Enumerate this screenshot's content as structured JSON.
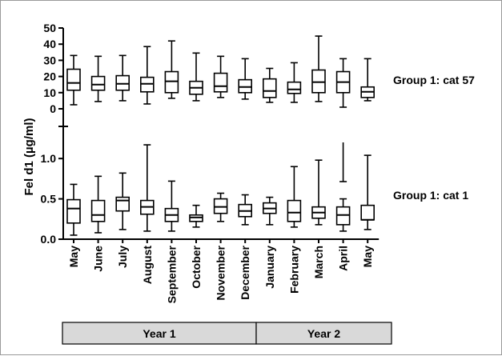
{
  "chart_data": [
    {
      "type": "box",
      "title": "",
      "panel_label": "Group 1: cat 57",
      "ylabel": "Fel d1 (µg/ml)",
      "ylim": [
        0,
        50
      ],
      "yticks": [
        "0",
        "10",
        "20",
        "30",
        "40",
        "50"
      ],
      "y_axis_break_at_bottom": true,
      "grid": false,
      "categories": [
        "May",
        "June",
        "July",
        "August",
        "September",
        "October",
        "November",
        "December",
        "January",
        "February",
        "March",
        "April",
        "May"
      ],
      "boxes": [
        {
          "min": 2.5,
          "q1": 11.5,
          "median": 16,
          "q3": 24.5,
          "max": 33
        },
        {
          "min": 4.5,
          "q1": 11.5,
          "median": 15,
          "q3": 20,
          "max": 32.5
        },
        {
          "min": 5,
          "q1": 11.5,
          "median": 15.5,
          "q3": 20.5,
          "max": 33
        },
        {
          "min": 3,
          "q1": 10.5,
          "median": 15.5,
          "q3": 19.5,
          "max": 38.5
        },
        {
          "min": 6.5,
          "q1": 10,
          "median": 17,
          "q3": 23,
          "max": 42
        },
        {
          "min": 5,
          "q1": 9,
          "median": 13,
          "q3": 17,
          "max": 34.5
        },
        {
          "min": 7,
          "q1": 10.5,
          "median": 14,
          "q3": 22,
          "max": 32.5
        },
        {
          "min": 6,
          "q1": 10,
          "median": 13.5,
          "q3": 18,
          "max": 31
        },
        {
          "min": 4,
          "q1": 7,
          "median": 11,
          "q3": 18.5,
          "max": 25
        },
        {
          "min": 4,
          "q1": 9.5,
          "median": 12,
          "q3": 16.5,
          "max": 28.5
        },
        {
          "min": 4.5,
          "q1": 10,
          "median": 16.5,
          "q3": 24,
          "max": 45
        },
        {
          "min": 1,
          "q1": 10,
          "median": 16.5,
          "q3": 23,
          "max": 31
        },
        {
          "min": 5,
          "q1": 7,
          "median": 10.5,
          "q3": 13.5,
          "max": 31
        }
      ]
    },
    {
      "type": "box",
      "title": "",
      "panel_label": "Group 1: cat 1",
      "ylim": [
        0,
        1.2
      ],
      "yticks": [
        "0.0",
        "0.5",
        "1.0"
      ],
      "y_axis_break_at_top": true,
      "grid": false,
      "categories": [
        "May",
        "June",
        "July",
        "August",
        "September",
        "October",
        "November",
        "December",
        "January",
        "February",
        "March",
        "April",
        "May"
      ],
      "boxes": [
        {
          "min": 0.05,
          "q1": 0.2,
          "median": 0.38,
          "q3": 0.49,
          "max": 0.68
        },
        {
          "min": 0.08,
          "q1": 0.22,
          "median": 0.3,
          "q3": 0.48,
          "max": 0.78
        },
        {
          "min": 0.12,
          "q1": 0.35,
          "median": 0.48,
          "q3": 0.52,
          "max": 0.82
        },
        {
          "min": 0.1,
          "q1": 0.31,
          "median": 0.4,
          "q3": 0.48,
          "max": 1.17
        },
        {
          "min": 0.1,
          "q1": 0.22,
          "median": 0.3,
          "q3": 0.38,
          "max": 0.72
        },
        {
          "min": 0.15,
          "q1": 0.22,
          "median": 0.27,
          "q3": 0.3,
          "max": 0.42
        },
        {
          "min": 0.22,
          "q1": 0.32,
          "median": 0.4,
          "q3": 0.5,
          "max": 0.57
        },
        {
          "min": 0.18,
          "q1": 0.28,
          "median": 0.35,
          "q3": 0.43,
          "max": 0.55
        },
        {
          "min": 0.18,
          "q1": 0.32,
          "median": 0.38,
          "q3": 0.45,
          "max": 0.52
        },
        {
          "min": 0.15,
          "q1": 0.22,
          "median": 0.33,
          "q3": 0.48,
          "max": 0.9
        },
        {
          "min": 0.18,
          "q1": 0.26,
          "median": 0.33,
          "q3": 0.4,
          "max": 0.98
        },
        {
          "min": 0.1,
          "q1": 0.18,
          "median": 0.3,
          "q3": 0.4,
          "max": 0.5
        },
        {
          "min": 0.12,
          "q1": 0.24,
          "median": 0.24,
          "q3": 0.42,
          "max": 1.04
        }
      ],
      "april_whisker_extends_into_break": true
    }
  ],
  "year_bar": {
    "segments": [
      {
        "label": "Year 1",
        "months": 8
      },
      {
        "label": "Year 2",
        "months": 5
      }
    ],
    "fill": "#d9d9d9"
  }
}
